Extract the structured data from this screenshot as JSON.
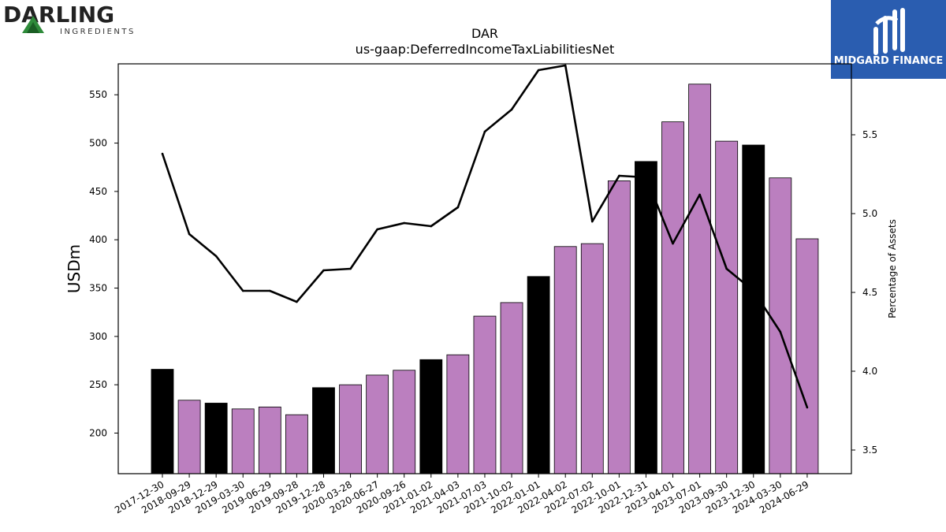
{
  "logos": {
    "left": {
      "name": "DARLING",
      "tagline": "INGREDIENTS"
    },
    "right": {
      "name": "MIDGARD FINANCE"
    }
  },
  "colors": {
    "bar_default": "#bb7fbf",
    "bar_highlight": "#000000",
    "line": "#000000",
    "logo_blue": "#2a5db0",
    "logo_green": "#2e8b3a"
  },
  "chart_data": {
    "type": "bar",
    "title": "DAR",
    "subtitle": "us-gaap:DeferredIncomeTaxLiabilitiesNet",
    "xlabel": "",
    "ylabel": "USDm",
    "y2label": "Percentage of Assets",
    "ylim": [
      158,
      582
    ],
    "y2lim": [
      3.35,
      5.95
    ],
    "yticks": [
      200,
      250,
      300,
      350,
      400,
      450,
      500,
      550
    ],
    "y2ticks": [
      "3.5",
      "4.0",
      "4.5",
      "5.0",
      "5.5"
    ],
    "categories": [
      "2017-12-30",
      "2018-09-29",
      "2018-12-29",
      "2019-03-30",
      "2019-06-29",
      "2019-09-28",
      "2019-12-28",
      "2020-03-28",
      "2020-06-27",
      "2020-09-26",
      "2021-01-02",
      "2021-04-03",
      "2021-07-03",
      "2021-10-02",
      "2022-01-01",
      "2022-04-02",
      "2022-07-02",
      "2022-10-01",
      "2022-12-31",
      "2023-04-01",
      "2023-07-01",
      "2023-09-30",
      "2023-12-30",
      "2024-03-30",
      "2024-06-29"
    ],
    "series": [
      {
        "type": "bar",
        "values": [
          266,
          234,
          231,
          225,
          227,
          219,
          247,
          250,
          260,
          265,
          276,
          281,
          321,
          335,
          362,
          393,
          396,
          461,
          481,
          522,
          561,
          502,
          498,
          464,
          401
        ],
        "highlight": [
          true,
          false,
          true,
          false,
          false,
          false,
          true,
          false,
          false,
          false,
          true,
          false,
          false,
          false,
          true,
          false,
          false,
          false,
          true,
          false,
          false,
          false,
          true,
          false,
          false
        ]
      },
      {
        "type": "line",
        "axis": "right",
        "values": [
          5.38,
          4.87,
          4.73,
          4.51,
          4.51,
          4.44,
          4.64,
          4.65,
          4.9,
          4.94,
          4.92,
          5.04,
          5.52,
          5.66,
          5.91,
          5.94,
          4.95,
          5.24,
          5.23,
          4.81,
          5.12,
          4.65,
          4.51,
          4.25,
          3.77
        ]
      }
    ]
  }
}
